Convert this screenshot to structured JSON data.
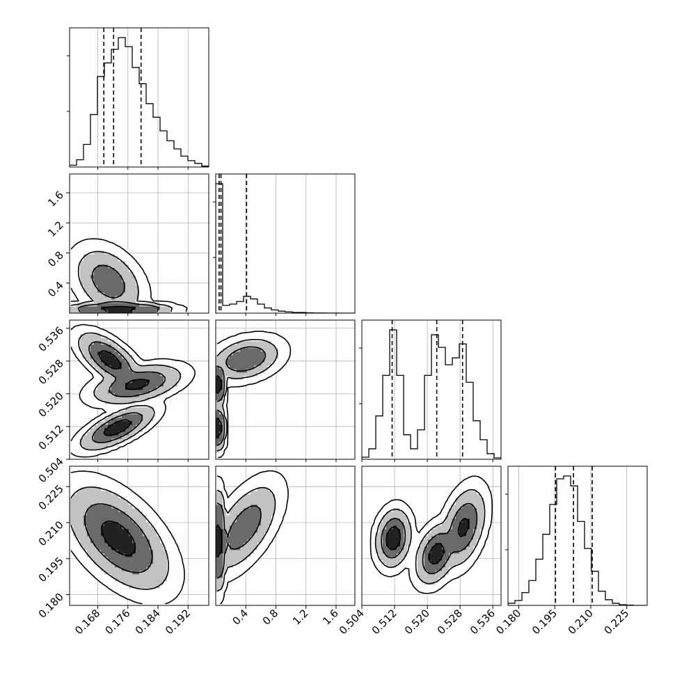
{
  "chart_data": {
    "type": "corner",
    "parameters": 4,
    "style": {
      "grid": true,
      "grid_color": "#b0b0b0",
      "line_color": "#000000",
      "density_color": "#000000",
      "quantile_line_style": "dashed",
      "histogram_style": "step"
    },
    "axes": {
      "p0": {
        "range": [
          0.1605,
          0.1975
        ],
        "ticks": [
          0.168,
          0.176,
          0.184,
          0.192
        ],
        "tick_labels": [
          "0.168",
          "0.176",
          "0.184",
          "0.192"
        ]
      },
      "p1": {
        "range": [
          0.0,
          1.85
        ],
        "ticks_x": [
          0.4,
          0.8,
          1.2,
          1.6
        ],
        "tick_labels_x": [
          "0.4",
          "0.8",
          "1.2",
          "1.6"
        ],
        "ticks_y": [
          0.4,
          0.8,
          1.2,
          1.6
        ],
        "tick_labels_y": [
          "0.4",
          "0.8",
          "1.2",
          "1.6"
        ]
      },
      "p2": {
        "range": [
          0.504,
          0.538
        ],
        "ticks": [
          0.504,
          0.512,
          0.52,
          0.528,
          0.536
        ],
        "tick_labels": [
          "0.504",
          "0.512",
          "0.520",
          "0.528",
          "0.536"
        ]
      },
      "p3": {
        "range": [
          0.1755,
          0.2335
        ],
        "ticks": [
          0.18,
          0.195,
          0.21,
          0.225
        ],
        "tick_labels": [
          "0.180",
          "0.195",
          "0.210",
          "0.225"
        ]
      }
    },
    "histograms": [
      {
        "parameter": "p0",
        "bin_edges_start": 0.1605,
        "bin_width": 0.00185,
        "counts": [
          2,
          8,
          25,
          58,
          100,
          115,
          130,
          143,
          133,
          110,
          92,
          70,
          55,
          40,
          29,
          20,
          12,
          7,
          4,
          1
        ],
        "quantiles": [
          0.1696,
          0.1722,
          0.1795
        ]
      },
      {
        "parameter": "p1",
        "bin_edges_start": 0.0,
        "bin_width": 0.0925,
        "counts": [
          200,
          12,
          14,
          18,
          26,
          22,
          14,
          8,
          5,
          3,
          2,
          1,
          1,
          0.5,
          0.3,
          0.2,
          0.1,
          0.1,
          0,
          0
        ],
        "quantiles": [
          0.045,
          0.07,
          0.41
        ]
      },
      {
        "parameter": "p2",
        "bin_edges_start": 0.504,
        "bin_width": 0.0017,
        "counts": [
          3,
          15,
          62,
          120,
          185,
          120,
          35,
          15,
          42,
          120,
          178,
          160,
          135,
          145,
          165,
          110,
          55,
          28,
          8,
          2
        ],
        "quantiles": [
          0.5114,
          0.5223,
          0.5286
        ]
      },
      {
        "parameter": "p3",
        "bin_edges_start": 0.1755,
        "bin_width": 0.0029,
        "counts": [
          3,
          7,
          18,
          35,
          65,
          100,
          142,
          178,
          182,
          168,
          118,
          80,
          48,
          20,
          8,
          3,
          1,
          0.5,
          0,
          0
        ],
        "quantiles": [
          0.1953,
          0.2028,
          0.2106
        ]
      }
    ],
    "densities": [
      {
        "x": "p0",
        "y": "p1",
        "clusters": [
          {
            "mx": 0.1735,
            "my": 0.05,
            "sx": 0.0045,
            "sy": 0.03,
            "rho": 0.0,
            "w": 0.7
          },
          {
            "mx": 0.1708,
            "my": 0.42,
            "sx": 0.0032,
            "sy": 0.16,
            "rho": -0.35,
            "w": 0.3
          }
        ]
      },
      {
        "x": "p0",
        "y": "p2",
        "clusters": [
          {
            "mx": 0.1712,
            "my": 0.5283,
            "sx": 0.0028,
            "sy": 0.0022,
            "rho": -0.65,
            "w": 0.34
          },
          {
            "mx": 0.1785,
            "my": 0.5223,
            "sx": 0.004,
            "sy": 0.0016,
            "rho": 0.45,
            "w": 0.33
          },
          {
            "mx": 0.1732,
            "my": 0.5117,
            "sx": 0.0033,
            "sy": 0.0018,
            "rho": 0.7,
            "w": 0.33
          }
        ]
      },
      {
        "x": "p0",
        "y": "p3",
        "clusters": [
          {
            "mx": 0.1735,
            "my": 0.2035,
            "sx": 0.0045,
            "sy": 0.0072,
            "rho": -0.55,
            "w": 1.0
          }
        ]
      },
      {
        "x": "p1",
        "y": "p2",
        "clusters": [
          {
            "mx": 0.035,
            "my": 0.5223,
            "sx": 0.03,
            "sy": 0.0018,
            "rho": 0.0,
            "w": 0.3
          },
          {
            "mx": 0.035,
            "my": 0.5117,
            "sx": 0.03,
            "sy": 0.0018,
            "rho": 0.0,
            "w": 0.33
          },
          {
            "mx": 0.4,
            "my": 0.5285,
            "sx": 0.16,
            "sy": 0.0018,
            "rho": 0.3,
            "w": 0.37
          }
        ]
      },
      {
        "x": "p1",
        "y": "p3",
        "clusters": [
          {
            "mx": 0.04,
            "my": 0.2025,
            "sx": 0.03,
            "sy": 0.0065,
            "rho": 0.0,
            "w": 0.65
          },
          {
            "mx": 0.38,
            "my": 0.208,
            "sx": 0.16,
            "sy": 0.0065,
            "rho": 0.6,
            "w": 0.35
          }
        ]
      },
      {
        "x": "p2",
        "y": "p3",
        "clusters": [
          {
            "mx": 0.5117,
            "my": 0.2035,
            "sx": 0.0014,
            "sy": 0.004,
            "rho": 0.15,
            "w": 0.33
          },
          {
            "mx": 0.5222,
            "my": 0.197,
            "sx": 0.0017,
            "sy": 0.0042,
            "rho": 0.35,
            "w": 0.33
          },
          {
            "mx": 0.5288,
            "my": 0.208,
            "sx": 0.0018,
            "sy": 0.0055,
            "rho": 0.4,
            "w": 0.34
          }
        ]
      }
    ]
  }
}
